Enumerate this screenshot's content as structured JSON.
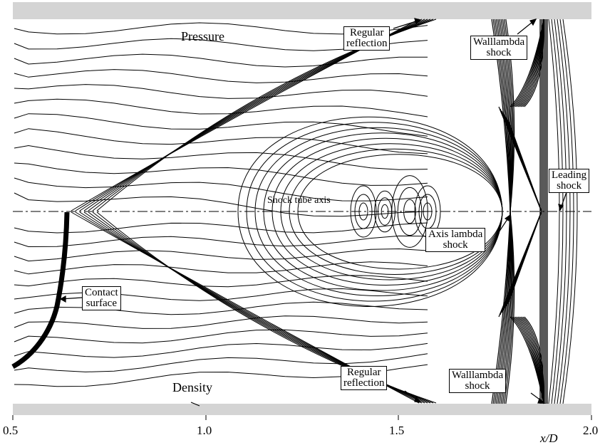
{
  "labels": {
    "pressure": "Pressure",
    "density": "Density",
    "axis": "Shock tube axis",
    "regular_reflection_top": [
      "Regular",
      "reflection"
    ],
    "regular_reflection_bottom": [
      "Regular",
      "reflection"
    ],
    "walllambda_top": [
      "Walllambda",
      "shock"
    ],
    "walllambda_bottom": [
      "Walllambda",
      "shock"
    ],
    "leading": [
      "Leading",
      "shock"
    ],
    "axis_lambda": [
      "Axis lambda",
      "shock"
    ],
    "contact": [
      "Contact",
      "surface"
    ]
  },
  "x_axis": {
    "ticks": [
      0.5,
      1.0,
      1.5,
      2.0
    ],
    "tick_labels": [
      "0.5",
      "1.0",
      "1.5",
      "2.0"
    ],
    "label": "x/D",
    "range": [
      0.5,
      2.0
    ]
  },
  "colors": {
    "wall": "#d4d4d4",
    "line": "#000000"
  }
}
